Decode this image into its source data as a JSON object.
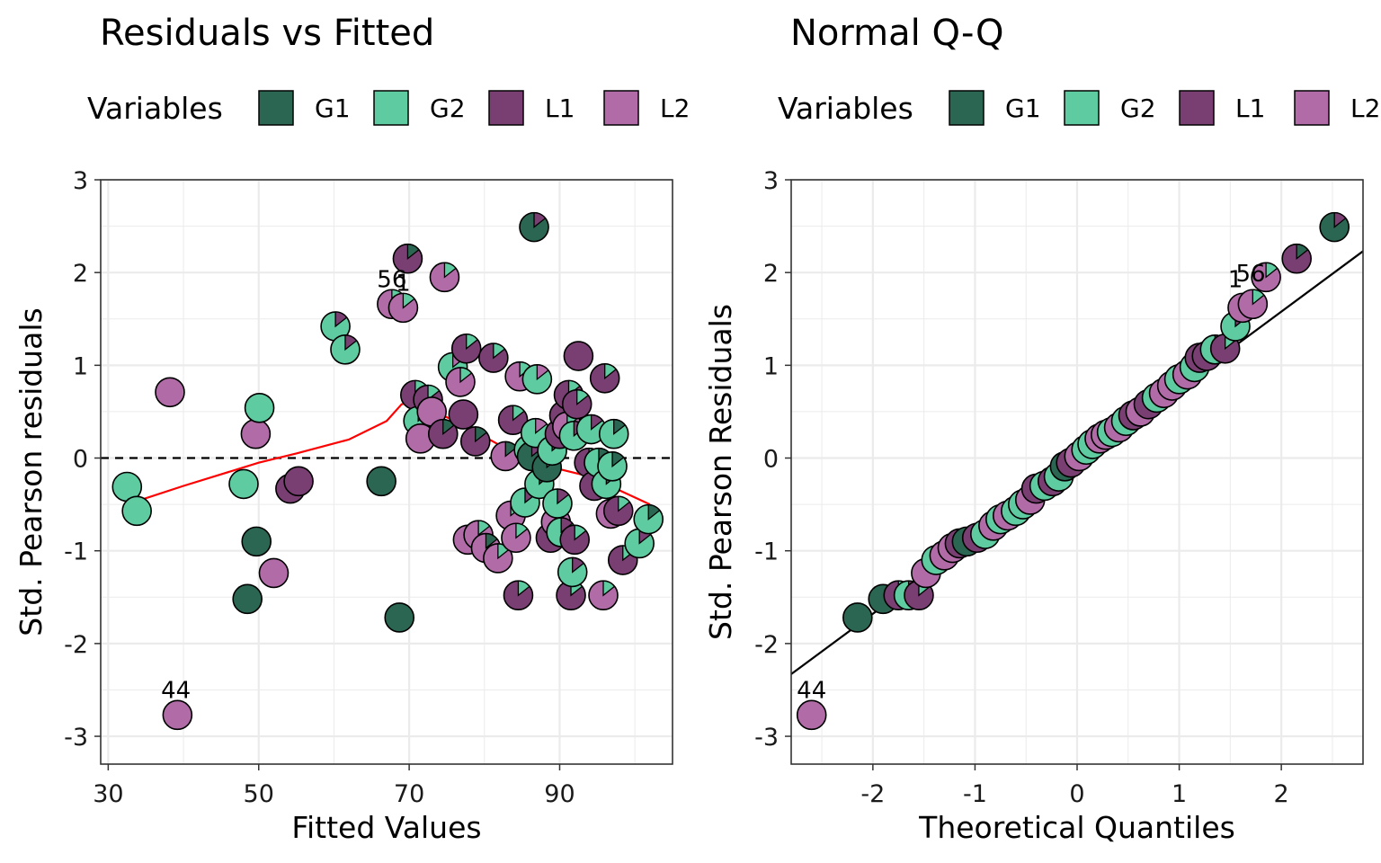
{
  "colors": {
    "G1": "#2a6651",
    "G2": "#5ecba1",
    "L1": "#7a3f72",
    "L2": "#b16ca8",
    "smooth": "#ff0000",
    "panel_border": "#333333",
    "grid": "#ebebeb"
  },
  "chart_data": [
    {
      "type": "scatter",
      "title": "Residuals vs Fitted",
      "xlabel": "Fitted Values",
      "ylabel": "Std. Pearson residuals",
      "xlim": [
        29,
        105
      ],
      "ylim": [
        -3.3,
        3.0
      ],
      "xticks": [
        "30",
        "50",
        "70",
        "90"
      ],
      "yticks": [
        "-3",
        "-2",
        "-1",
        "0",
        "1",
        "2",
        "3"
      ],
      "grid": true,
      "legend": {
        "title": "Variables",
        "position": "top",
        "entries": [
          "G1",
          "G2",
          "L1",
          "L2"
        ]
      },
      "reference_line": {
        "type": "hline",
        "y": 0,
        "style": "dashed"
      },
      "smooth": [
        [
          32.5,
          -0.5
        ],
        [
          40,
          -0.3
        ],
        [
          50,
          -0.05
        ],
        [
          55,
          0.05
        ],
        [
          62,
          0.2
        ],
        [
          67,
          0.4
        ],
        [
          69,
          0.58
        ],
        [
          71,
          0.62
        ],
        [
          74,
          0.48
        ],
        [
          78,
          0.32
        ],
        [
          84,
          0.05
        ],
        [
          88,
          -0.08
        ],
        [
          93,
          -0.18
        ],
        [
          98,
          -0.35
        ],
        [
          102,
          -0.5
        ]
      ],
      "labels": [
        {
          "text": "44",
          "x": 39,
          "y": -2.77
        },
        {
          "text": "56",
          "x": 67.7,
          "y": 1.66
        },
        {
          "text": "1",
          "x": 69.2,
          "y": 1.62
        }
      ],
      "points": [
        {
          "x": 32.5,
          "y": -0.31,
          "c": "G2"
        },
        {
          "x": 33.8,
          "y": -0.57,
          "c": "G2"
        },
        {
          "x": 38.2,
          "y": 0.71,
          "c": "L2"
        },
        {
          "x": 39.2,
          "y": -2.77,
          "c": "L2"
        },
        {
          "x": 48.0,
          "y": -0.28,
          "c": "G2"
        },
        {
          "x": 48.5,
          "y": -1.52,
          "c": "G1"
        },
        {
          "x": 49.6,
          "y": 0.26,
          "c": "L2"
        },
        {
          "x": 49.7,
          "y": -0.9,
          "c": "G1"
        },
        {
          "x": 50.1,
          "y": 0.54,
          "c": "G2"
        },
        {
          "x": 52.0,
          "y": -1.24,
          "c": "L2"
        },
        {
          "x": 54.2,
          "y": -0.33,
          "c": "L1"
        },
        {
          "x": 55.3,
          "y": -0.25,
          "c": "L1"
        },
        {
          "x": 60.2,
          "y": 1.42,
          "c": "G2",
          "w": "L1"
        },
        {
          "x": 61.5,
          "y": 1.17,
          "c": "G2",
          "w": "L1"
        },
        {
          "x": 66.3,
          "y": -0.25,
          "c": "G1"
        },
        {
          "x": 67.7,
          "y": 1.66,
          "c": "L2",
          "w": "G2"
        },
        {
          "x": 68.7,
          "y": -1.72,
          "c": "G1"
        },
        {
          "x": 69.2,
          "y": 1.62,
          "c": "L2",
          "w": "G2"
        },
        {
          "x": 69.8,
          "y": 2.15,
          "c": "L1",
          "w": "G1"
        },
        {
          "x": 70.8,
          "y": 0.68,
          "c": "L1",
          "w": "G2"
        },
        {
          "x": 71.2,
          "y": 0.4,
          "c": "G2",
          "w": "L1"
        },
        {
          "x": 71.5,
          "y": 0.21,
          "c": "L2"
        },
        {
          "x": 72.5,
          "y": 0.63,
          "c": "L1",
          "w": "G2"
        },
        {
          "x": 73.0,
          "y": 0.5,
          "c": "L2"
        },
        {
          "x": 74.5,
          "y": 0.26,
          "c": "L1",
          "w": "G1"
        },
        {
          "x": 74.7,
          "y": 1.95,
          "c": "L2",
          "w": "G2"
        },
        {
          "x": 75.8,
          "y": 0.98,
          "c": "G2",
          "w": "L2"
        },
        {
          "x": 76.8,
          "y": 0.82,
          "c": "L2",
          "w": "G2"
        },
        {
          "x": 77.2,
          "y": 0.47,
          "c": "L1"
        },
        {
          "x": 77.6,
          "y": 1.18,
          "c": "L1",
          "w": "G2"
        },
        {
          "x": 77.8,
          "y": -0.88,
          "c": "L2",
          "w": "G1"
        },
        {
          "x": 78.8,
          "y": 0.18,
          "c": "L1",
          "w": "G1"
        },
        {
          "x": 79.2,
          "y": -0.83,
          "c": "L2",
          "w": "G2"
        },
        {
          "x": 80.2,
          "y": -0.97,
          "c": "L2",
          "w": "G1"
        },
        {
          "x": 81.2,
          "y": 1.08,
          "c": "L1",
          "w": "G2"
        },
        {
          "x": 81.8,
          "y": -1.08,
          "c": "L2",
          "w": "G2"
        },
        {
          "x": 82.8,
          "y": 0.02,
          "c": "L2",
          "w": "G1"
        },
        {
          "x": 83.5,
          "y": -0.62,
          "c": "L2",
          "w": "G2"
        },
        {
          "x": 83.8,
          "y": 0.41,
          "c": "L1",
          "w": "G2"
        },
        {
          "x": 84.2,
          "y": -0.86,
          "c": "L2",
          "w": "G2"
        },
        {
          "x": 84.5,
          "y": -1.48,
          "c": "L1",
          "w": "G2"
        },
        {
          "x": 84.7,
          "y": 0.88,
          "c": "L2",
          "w": "G2"
        },
        {
          "x": 85.4,
          "y": -0.48,
          "c": "G2",
          "w": "L1"
        },
        {
          "x": 85.9,
          "y": 0.09,
          "c": "G2"
        },
        {
          "x": 86.3,
          "y": 0.02,
          "c": "G1",
          "w": "L1"
        },
        {
          "x": 86.6,
          "y": 2.49,
          "c": "G1",
          "w": "L1"
        },
        {
          "x": 86.8,
          "y": 0.27,
          "c": "G2",
          "w": "L2"
        },
        {
          "x": 87.0,
          "y": 0.85,
          "c": "G2",
          "w": "L2"
        },
        {
          "x": 87.3,
          "y": -0.28,
          "c": "G2",
          "w": "G1"
        },
        {
          "x": 88.3,
          "y": -0.1,
          "c": "G1",
          "w": "G2"
        },
        {
          "x": 88.8,
          "y": -0.86,
          "c": "L1",
          "w": "G2"
        },
        {
          "x": 89.0,
          "y": 0.08,
          "c": "G2",
          "w": "G1"
        },
        {
          "x": 89.5,
          "y": -0.69,
          "c": "L2",
          "w": "G1"
        },
        {
          "x": 89.7,
          "y": -0.49,
          "c": "G2",
          "w": "L1"
        },
        {
          "x": 90.0,
          "y": 0.26,
          "c": "L1",
          "w": "G2"
        },
        {
          "x": 90.2,
          "y": -0.8,
          "c": "G2",
          "w": "L1"
        },
        {
          "x": 90.6,
          "y": 0.46,
          "c": "L1",
          "w": "G2"
        },
        {
          "x": 91.0,
          "y": 0.34,
          "c": "L2",
          "w": "G2"
        },
        {
          "x": 91.2,
          "y": 0.68,
          "c": "L1",
          "w": "G2"
        },
        {
          "x": 91.5,
          "y": -1.48,
          "c": "L1",
          "w": "G2"
        },
        {
          "x": 91.7,
          "y": -1.23,
          "c": "G2",
          "w": "L1"
        },
        {
          "x": 91.9,
          "y": 0.24,
          "c": "G2",
          "w": "L1"
        },
        {
          "x": 92.0,
          "y": -0.88,
          "c": "L1",
          "w": "G2"
        },
        {
          "x": 92.3,
          "y": 0.58,
          "c": "L1",
          "w": "G2"
        },
        {
          "x": 92.5,
          "y": 1.1,
          "c": "L1"
        },
        {
          "x": 93.9,
          "y": -0.05,
          "c": "L1",
          "w": "G2"
        },
        {
          "x": 94.2,
          "y": 0.31,
          "c": "G2",
          "w": "L1"
        },
        {
          "x": 94.6,
          "y": -0.3,
          "c": "L1",
          "w": "G1"
        },
        {
          "x": 95.2,
          "y": -0.05,
          "c": "G2",
          "w": "G1"
        },
        {
          "x": 95.8,
          "y": -1.48,
          "c": "L2",
          "w": "G2"
        },
        {
          "x": 96.0,
          "y": 0.86,
          "c": "L1",
          "w": "G2"
        },
        {
          "x": 96.2,
          "y": -0.28,
          "c": "G2",
          "w": "G1"
        },
        {
          "x": 96.8,
          "y": -0.6,
          "c": "L2",
          "w": "G1"
        },
        {
          "x": 97.0,
          "y": -0.09,
          "c": "G2",
          "w": "G1"
        },
        {
          "x": 97.2,
          "y": 0.26,
          "c": "G2",
          "w": "G1"
        },
        {
          "x": 97.8,
          "y": -0.57,
          "c": "L1",
          "w": "G2"
        },
        {
          "x": 98.4,
          "y": -1.1,
          "c": "L1",
          "w": "G2"
        },
        {
          "x": 100.6,
          "y": -0.92,
          "c": "G2",
          "w": "L1"
        },
        {
          "x": 101.8,
          "y": -0.66,
          "c": "G2",
          "w": "G1"
        }
      ]
    },
    {
      "type": "scatter",
      "title": "Normal Q-Q",
      "xlabel": "Theoretical Quantiles",
      "ylabel": "Std. Pearson Residuals",
      "xlim": [
        -2.8,
        2.8
      ],
      "ylim": [
        -3.3,
        3.0
      ],
      "xticks": [
        "-2",
        "-1",
        "0",
        "1",
        "2"
      ],
      "yticks": [
        "-3",
        "-2",
        "-1",
        "0",
        "1",
        "2",
        "3"
      ],
      "grid": true,
      "legend": {
        "title": "Variables",
        "position": "top",
        "entries": [
          "G1",
          "G2",
          "L1",
          "L2"
        ]
      },
      "reference_line": {
        "type": "abline",
        "points": [
          [
            -2.8,
            -2.33
          ],
          [
            2.8,
            2.23
          ]
        ]
      },
      "labels": [
        {
          "text": "44",
          "x": -2.6,
          "y": -2.77
        },
        {
          "text": "1",
          "x": 1.55,
          "y": 1.66
        },
        {
          "text": "56",
          "x": 1.7,
          "y": 1.72
        }
      ],
      "points": [
        {
          "x": -2.6,
          "y": -2.77,
          "c": "L2"
        },
        {
          "x": -2.15,
          "y": -1.72,
          "c": "G1"
        },
        {
          "x": -1.9,
          "y": -1.52,
          "c": "G1"
        },
        {
          "x": -1.75,
          "y": -1.48,
          "c": "L1",
          "w": "G2"
        },
        {
          "x": -1.65,
          "y": -1.48,
          "c": "G2",
          "w": "L1"
        },
        {
          "x": -1.55,
          "y": -1.48,
          "c": "L1",
          "w": "G2"
        },
        {
          "x": -1.48,
          "y": -1.24,
          "c": "L2"
        },
        {
          "x": -1.38,
          "y": -1.1,
          "c": "G2",
          "w": "L1"
        },
        {
          "x": -1.3,
          "y": -1.05,
          "c": "L2"
        },
        {
          "x": -1.22,
          "y": -0.97,
          "c": "L2",
          "w": "G1"
        },
        {
          "x": -1.15,
          "y": -0.92,
          "c": "L1",
          "w": "G2"
        },
        {
          "x": -1.08,
          "y": -0.9,
          "c": "G1"
        },
        {
          "x": -0.98,
          "y": -0.86,
          "c": "L1",
          "w": "G2"
        },
        {
          "x": -0.9,
          "y": -0.82,
          "c": "G2",
          "w": "L1"
        },
        {
          "x": -0.82,
          "y": -0.73,
          "c": "L2",
          "w": "G1"
        },
        {
          "x": -0.75,
          "y": -0.66,
          "c": "G2",
          "w": "L1"
        },
        {
          "x": -0.68,
          "y": -0.62,
          "c": "L2",
          "w": "G2"
        },
        {
          "x": -0.6,
          "y": -0.57,
          "c": "G2"
        },
        {
          "x": -0.53,
          "y": -0.5,
          "c": "G2",
          "w": "L1"
        },
        {
          "x": -0.46,
          "y": -0.45,
          "c": "L2",
          "w": "G2"
        },
        {
          "x": -0.4,
          "y": -0.33,
          "c": "L1"
        },
        {
          "x": -0.32,
          "y": -0.3,
          "c": "G2"
        },
        {
          "x": -0.24,
          "y": -0.25,
          "c": "L1",
          "w": "G1"
        },
        {
          "x": -0.18,
          "y": -0.2,
          "c": "G2",
          "w": "G1"
        },
        {
          "x": -0.12,
          "y": -0.09,
          "c": "G1",
          "w": "G2"
        },
        {
          "x": -0.06,
          "y": -0.05,
          "c": "L1"
        },
        {
          "x": 0.02,
          "y": 0.02,
          "c": "L2",
          "w": "G1"
        },
        {
          "x": 0.09,
          "y": 0.09,
          "c": "G2"
        },
        {
          "x": 0.15,
          "y": 0.15,
          "c": "G2",
          "w": "G1"
        },
        {
          "x": 0.22,
          "y": 0.21,
          "c": "L2"
        },
        {
          "x": 0.28,
          "y": 0.25,
          "c": "L2"
        },
        {
          "x": 0.34,
          "y": 0.28,
          "c": "G2",
          "w": "L1"
        },
        {
          "x": 0.41,
          "y": 0.33,
          "c": "L2",
          "w": "G2"
        },
        {
          "x": 0.48,
          "y": 0.4,
          "c": "G2",
          "w": "L1"
        },
        {
          "x": 0.55,
          "y": 0.46,
          "c": "L1",
          "w": "G2"
        },
        {
          "x": 0.62,
          "y": 0.5,
          "c": "L2"
        },
        {
          "x": 0.7,
          "y": 0.58,
          "c": "L1",
          "w": "G2"
        },
        {
          "x": 0.78,
          "y": 0.65,
          "c": "G2",
          "w": "L1"
        },
        {
          "x": 0.85,
          "y": 0.7,
          "c": "L2"
        },
        {
          "x": 0.93,
          "y": 0.78,
          "c": "L2",
          "w": "G2"
        },
        {
          "x": 1.0,
          "y": 0.85,
          "c": "G2",
          "w": "L2"
        },
        {
          "x": 1.08,
          "y": 0.9,
          "c": "L2",
          "w": "G2"
        },
        {
          "x": 1.15,
          "y": 0.98,
          "c": "G2",
          "w": "L2"
        },
        {
          "x": 1.2,
          "y": 1.08,
          "c": "L1",
          "w": "G2"
        },
        {
          "x": 1.27,
          "y": 1.1,
          "c": "L1"
        },
        {
          "x": 1.35,
          "y": 1.17,
          "c": "G2",
          "w": "L1"
        },
        {
          "x": 1.45,
          "y": 1.18,
          "c": "L1",
          "w": "G2"
        },
        {
          "x": 1.55,
          "y": 1.42,
          "c": "G2",
          "w": "L1"
        },
        {
          "x": 1.62,
          "y": 1.62,
          "c": "L2",
          "w": "G2"
        },
        {
          "x": 1.72,
          "y": 1.66,
          "c": "L2",
          "w": "G2"
        },
        {
          "x": 1.85,
          "y": 1.95,
          "c": "L2",
          "w": "G2"
        },
        {
          "x": 2.15,
          "y": 2.15,
          "c": "L1",
          "w": "G1"
        },
        {
          "x": 2.52,
          "y": 2.49,
          "c": "G1",
          "w": "L1"
        }
      ]
    }
  ]
}
